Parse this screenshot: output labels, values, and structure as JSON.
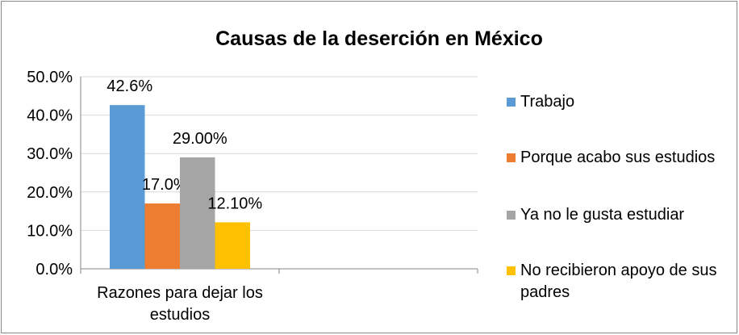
{
  "chart_data": {
    "type": "bar",
    "title": "Causas de la deserción en México",
    "categories": [
      "Razones para dejar los estudios",
      null
    ],
    "series": [
      {
        "name": "Trabajo",
        "color": "#5b9bd5",
        "values": [
          42.6,
          null
        ],
        "value_labels": [
          "42.6%",
          null
        ]
      },
      {
        "name": "Porque acabo sus estudios",
        "color": "#ed7d31",
        "values": [
          17.0,
          null
        ],
        "value_labels": [
          "17.0%",
          null
        ]
      },
      {
        "name": "Ya no le gusta estudiar",
        "color": "#a5a5a5",
        "values": [
          29.0,
          null
        ],
        "value_labels": [
          "29.00%",
          null
        ]
      },
      {
        "name": "No recibieron apoyo de sus padres",
        "color": "#ffc000",
        "values": [
          12.1,
          null
        ],
        "value_labels": [
          "12.10%",
          null
        ]
      }
    ],
    "ylim": [
      0,
      50
    ],
    "yticks": [
      {
        "value": 0,
        "label": "0.0%"
      },
      {
        "value": 10,
        "label": "10.0%"
      },
      {
        "value": 20,
        "label": "20.0%"
      },
      {
        "value": 30,
        "label": "30.0%"
      },
      {
        "value": 40,
        "label": "40.0%"
      },
      {
        "value": 50,
        "label": "50.0%"
      }
    ],
    "grid": true,
    "legend": "right"
  }
}
